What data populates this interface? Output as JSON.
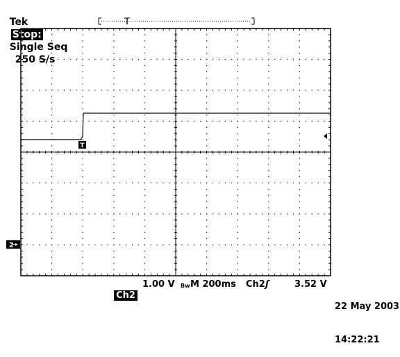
{
  "header": {
    "brand": "Tek",
    "state": "Stop:",
    "acquisition": "Single Seq",
    "rate": "250 S/s"
  },
  "trace": {
    "channel_marker": "2",
    "trigger_marker": "T"
  },
  "footer": {
    "channel_label": "Ch2",
    "volts_per_div": "1.00 V",
    "bw_symbol": "Bw",
    "timebase": "M 200ms",
    "trigger_source": "Ch2",
    "trigger_slope": "ʃ",
    "trigger_level": "3.52 V",
    "date": "22 May 2003",
    "time": "14:22:21"
  },
  "colors": {
    "trace": "#000000",
    "grid": "#000000",
    "background": "#ffffff"
  }
}
